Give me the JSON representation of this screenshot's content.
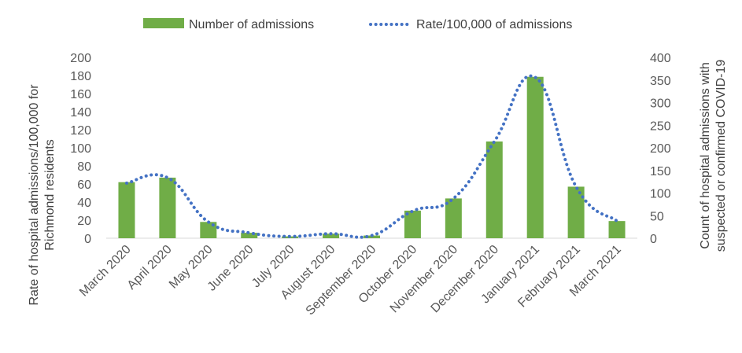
{
  "chart_data": {
    "type": "bar",
    "categories": [
      "March 2020",
      "April 2020",
      "May 2020",
      "June 2020",
      "July 2020",
      "August 2020",
      "September 2020",
      "October 2020",
      "November 2020",
      "December 2020",
      "January 2021",
      "February 2021",
      "March 2021"
    ],
    "series": [
      {
        "name": "Number of admissions",
        "type": "bar",
        "axis": "right",
        "color": "#70AD47",
        "values": [
          124,
          134,
          36,
          12,
          4,
          10,
          6,
          61,
          88,
          214,
          357,
          114,
          38
        ]
      },
      {
        "name": "Rate/100,000 of admissions",
        "type": "line",
        "style": "dotted",
        "axis": "left",
        "color": "#4472C4",
        "values": [
          61,
          67,
          18,
          6,
          2,
          5,
          3,
          30,
          44,
          107,
          178,
          57,
          19
        ]
      }
    ],
    "left_axis": {
      "label_line1": "Rate of hospital admissions/100,000 for",
      "label_line2": "Richmond residents",
      "ylim": [
        0,
        200
      ],
      "ticks": [
        "0",
        "20",
        "40",
        "60",
        "80",
        "100",
        "120",
        "140",
        "160",
        "180",
        "200"
      ]
    },
    "right_axis": {
      "label_line1": "Count of hospital admissions with",
      "label_line2": "suspected or confirmed COVID-19",
      "ylim": [
        0,
        400
      ],
      "ticks": [
        "0",
        "50",
        "100",
        "150",
        "200",
        "250",
        "300",
        "350",
        "400"
      ]
    },
    "legend": {
      "position": "top"
    },
    "grid": false
  }
}
